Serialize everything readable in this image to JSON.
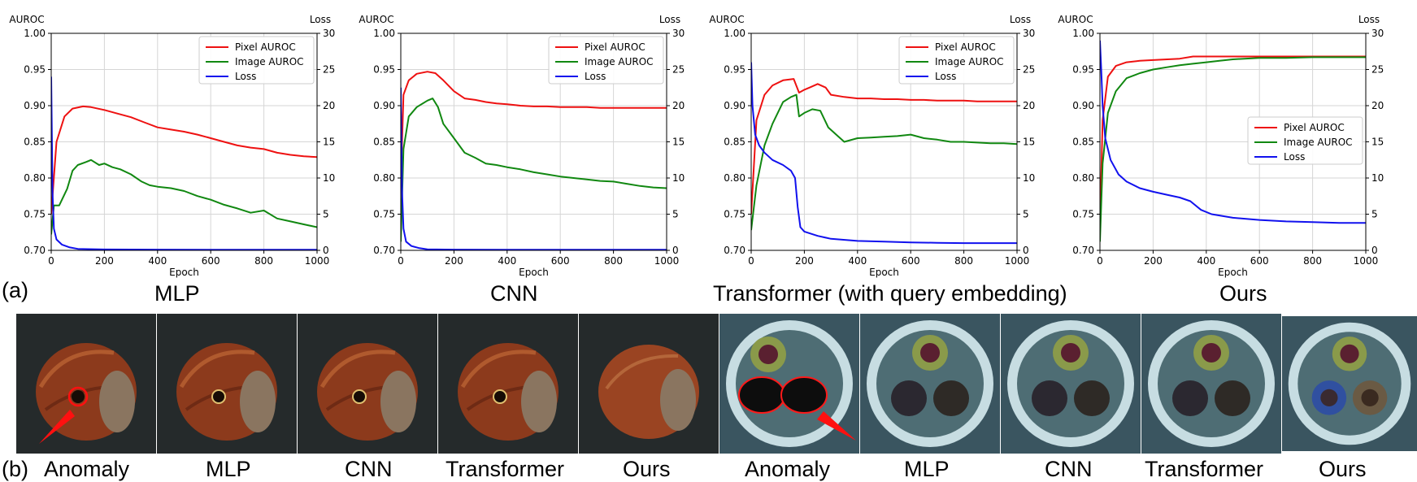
{
  "figure": {
    "part_a_tag": "(a)",
    "part_b_tag": "(b)",
    "chart_captions": [
      "MLP",
      "CNN",
      "Transformer (with query embedding)",
      "Ours"
    ],
    "image_captions": [
      "Anomaly",
      "MLP",
      "CNN",
      "Transformer",
      "Ours",
      "Anomaly",
      "MLP",
      "CNN",
      "Transformer",
      "Ours"
    ]
  },
  "chart_data": [
    {
      "type": "line",
      "title": "",
      "xlabel": "Epoch",
      "ylabel_left": "AUROC",
      "ylabel_right": "Loss",
      "xlim": [
        0,
        1000
      ],
      "ylim_left": [
        0.7,
        1.0
      ],
      "ylim_right": [
        0,
        30
      ],
      "xticks": [
        "0",
        "200",
        "400",
        "600",
        "800",
        "1000"
      ],
      "yticks_left": [
        "0.70",
        "0.75",
        "0.80",
        "0.85",
        "0.90",
        "0.95",
        "1.00"
      ],
      "yticks_right": [
        "0",
        "5",
        "10",
        "15",
        "20",
        "25",
        "30"
      ],
      "grid": true,
      "legend_position": "top-right",
      "series": [
        {
          "name": "Pixel AUROC",
          "axis": "left",
          "color": "#ee1111",
          "x": [
            0,
            20,
            50,
            80,
            120,
            150,
            200,
            250,
            300,
            350,
            400,
            450,
            500,
            550,
            600,
            650,
            700,
            750,
            800,
            850,
            900,
            950,
            1000
          ],
          "y": [
            0.75,
            0.85,
            0.885,
            0.896,
            0.899,
            0.898,
            0.894,
            0.889,
            0.884,
            0.877,
            0.87,
            0.867,
            0.864,
            0.86,
            0.855,
            0.85,
            0.845,
            0.842,
            0.84,
            0.835,
            0.832,
            0.83,
            0.829
          ]
        },
        {
          "name": "Image AUROC",
          "axis": "left",
          "color": "#118811",
          "x": [
            0,
            10,
            30,
            60,
            80,
            100,
            130,
            150,
            180,
            200,
            230,
            260,
            300,
            340,
            370,
            400,
            450,
            500,
            550,
            600,
            650,
            700,
            750,
            800,
            850,
            900,
            950,
            1000
          ],
          "y": [
            0.722,
            0.762,
            0.762,
            0.785,
            0.81,
            0.818,
            0.822,
            0.825,
            0.818,
            0.82,
            0.815,
            0.812,
            0.805,
            0.795,
            0.79,
            0.788,
            0.786,
            0.782,
            0.775,
            0.77,
            0.763,
            0.758,
            0.752,
            0.755,
            0.744,
            0.74,
            0.736,
            0.732
          ]
        },
        {
          "name": "Loss",
          "axis": "right",
          "color": "#1111ee",
          "x": [
            0,
            5,
            10,
            20,
            40,
            70,
            100,
            200,
            400,
            600,
            800,
            1000
          ],
          "y": [
            24.0,
            8.0,
            3.0,
            1.5,
            0.8,
            0.4,
            0.2,
            0.12,
            0.1,
            0.08,
            0.08,
            0.08
          ]
        }
      ]
    },
    {
      "type": "line",
      "title": "",
      "xlabel": "Epoch",
      "ylabel_left": "AUROC",
      "ylabel_right": "Loss",
      "xlim": [
        0,
        1000
      ],
      "ylim_left": [
        0.7,
        1.0
      ],
      "ylim_right": [
        0,
        30
      ],
      "xticks": [
        "0",
        "200",
        "400",
        "600",
        "800",
        "1000"
      ],
      "yticks_left": [
        "0.70",
        "0.75",
        "0.80",
        "0.85",
        "0.90",
        "0.95",
        "1.00"
      ],
      "yticks_right": [
        "0",
        "5",
        "10",
        "15",
        "20",
        "25",
        "30"
      ],
      "grid": true,
      "legend_position": "top-right",
      "series": [
        {
          "name": "Pixel AUROC",
          "axis": "left",
          "color": "#ee1111",
          "x": [
            0,
            10,
            30,
            60,
            100,
            130,
            160,
            200,
            240,
            280,
            320,
            360,
            400,
            450,
            500,
            550,
            600,
            650,
            700,
            750,
            800,
            850,
            900,
            950,
            1000
          ],
          "y": [
            0.79,
            0.915,
            0.935,
            0.944,
            0.947,
            0.945,
            0.935,
            0.92,
            0.91,
            0.908,
            0.905,
            0.903,
            0.902,
            0.9,
            0.899,
            0.899,
            0.898,
            0.898,
            0.898,
            0.897,
            0.897,
            0.897,
            0.897,
            0.897,
            0.897
          ]
        },
        {
          "name": "Image AUROC",
          "axis": "left",
          "color": "#118811",
          "x": [
            0,
            10,
            30,
            60,
            100,
            120,
            140,
            160,
            200,
            240,
            280,
            320,
            360,
            400,
            450,
            500,
            550,
            600,
            650,
            700,
            750,
            800,
            850,
            900,
            950,
            1000
          ],
          "y": [
            0.712,
            0.84,
            0.885,
            0.898,
            0.907,
            0.91,
            0.898,
            0.875,
            0.855,
            0.835,
            0.828,
            0.82,
            0.818,
            0.815,
            0.812,
            0.808,
            0.805,
            0.802,
            0.8,
            0.798,
            0.796,
            0.795,
            0.792,
            0.789,
            0.787,
            0.786
          ]
        },
        {
          "name": "Loss",
          "axis": "right",
          "color": "#1111ee",
          "x": [
            0,
            5,
            10,
            20,
            40,
            70,
            100,
            200,
            400,
            600,
            800,
            1000
          ],
          "y": [
            22.5,
            8.0,
            3.0,
            1.2,
            0.6,
            0.3,
            0.15,
            0.1,
            0.08,
            0.08,
            0.08,
            0.08
          ]
        }
      ]
    },
    {
      "type": "line",
      "title": "",
      "xlabel": "Epoch",
      "ylabel_left": "AUROC",
      "ylabel_right": "Loss",
      "xlim": [
        0,
        1000
      ],
      "ylim_left": [
        0.7,
        1.0
      ],
      "ylim_right": [
        0,
        30
      ],
      "xticks": [
        "0",
        "200",
        "400",
        "600",
        "800",
        "1000"
      ],
      "yticks_left": [
        "0.70",
        "0.75",
        "0.80",
        "0.85",
        "0.90",
        "0.95",
        "1.00"
      ],
      "yticks_right": [
        "0",
        "5",
        "10",
        "15",
        "20",
        "25",
        "30"
      ],
      "grid": true,
      "legend_position": "top-right",
      "series": [
        {
          "name": "Pixel AUROC",
          "axis": "left",
          "color": "#ee1111",
          "x": [
            0,
            20,
            50,
            80,
            120,
            160,
            180,
            200,
            220,
            250,
            280,
            300,
            350,
            400,
            450,
            500,
            550,
            600,
            650,
            700,
            750,
            800,
            850,
            900,
            950,
            1000
          ],
          "y": [
            0.75,
            0.88,
            0.915,
            0.928,
            0.935,
            0.937,
            0.918,
            0.922,
            0.925,
            0.93,
            0.925,
            0.915,
            0.912,
            0.91,
            0.91,
            0.909,
            0.909,
            0.908,
            0.908,
            0.907,
            0.907,
            0.907,
            0.906,
            0.906,
            0.906,
            0.906
          ]
        },
        {
          "name": "Image AUROC",
          "axis": "left",
          "color": "#118811",
          "x": [
            0,
            20,
            50,
            80,
            120,
            150,
            170,
            180,
            200,
            230,
            260,
            290,
            320,
            350,
            400,
            450,
            500,
            550,
            600,
            650,
            700,
            750,
            800,
            850,
            900,
            950,
            1000
          ],
          "y": [
            0.728,
            0.79,
            0.845,
            0.875,
            0.905,
            0.912,
            0.915,
            0.885,
            0.89,
            0.895,
            0.893,
            0.87,
            0.86,
            0.85,
            0.855,
            0.856,
            0.857,
            0.858,
            0.86,
            0.855,
            0.853,
            0.85,
            0.85,
            0.849,
            0.848,
            0.848,
            0.847
          ]
        },
        {
          "name": "Loss",
          "axis": "right",
          "color": "#1111ee",
          "x": [
            0,
            5,
            15,
            30,
            50,
            80,
            120,
            150,
            165,
            175,
            185,
            200,
            250,
            300,
            400,
            500,
            600,
            700,
            800,
            900,
            1000
          ],
          "y": [
            26.0,
            20.0,
            16.0,
            14.5,
            13.5,
            12.5,
            11.8,
            11.0,
            10.0,
            6.0,
            3.2,
            2.6,
            2.0,
            1.6,
            1.3,
            1.2,
            1.1,
            1.05,
            1.0,
            1.0,
            1.0
          ]
        }
      ]
    },
    {
      "type": "line",
      "title": "",
      "xlabel": "Epoch",
      "ylabel_left": "AUROC",
      "ylabel_right": "Loss",
      "xlim": [
        0,
        1000
      ],
      "ylim_left": [
        0.7,
        1.0
      ],
      "ylim_right": [
        0,
        30
      ],
      "xticks": [
        "0",
        "200",
        "400",
        "600",
        "800",
        "1000"
      ],
      "yticks_left": [
        "0.70",
        "0.75",
        "0.80",
        "0.85",
        "0.90",
        "0.95",
        "1.00"
      ],
      "yticks_right": [
        "0",
        "5",
        "10",
        "15",
        "20",
        "25",
        "30"
      ],
      "grid": true,
      "legend_position": "center-right",
      "series": [
        {
          "name": "Pixel AUROC",
          "axis": "left",
          "color": "#ee1111",
          "x": [
            0,
            10,
            30,
            60,
            100,
            150,
            200,
            300,
            350,
            400,
            500,
            600,
            700,
            800,
            900,
            1000
          ],
          "y": [
            0.73,
            0.88,
            0.94,
            0.955,
            0.96,
            0.962,
            0.963,
            0.965,
            0.968,
            0.968,
            0.968,
            0.968,
            0.968,
            0.968,
            0.968,
            0.968
          ]
        },
        {
          "name": "Image AUROC",
          "axis": "left",
          "color": "#118811",
          "x": [
            0,
            10,
            30,
            60,
            100,
            150,
            200,
            250,
            300,
            350,
            400,
            450,
            500,
            600,
            700,
            800,
            900,
            1000
          ],
          "y": [
            0.712,
            0.82,
            0.89,
            0.92,
            0.938,
            0.945,
            0.95,
            0.953,
            0.956,
            0.958,
            0.96,
            0.962,
            0.964,
            0.966,
            0.966,
            0.967,
            0.967,
            0.967
          ]
        },
        {
          "name": "Loss",
          "axis": "right",
          "color": "#1111ee",
          "x": [
            0,
            5,
            10,
            20,
            40,
            70,
            100,
            150,
            200,
            250,
            300,
            340,
            380,
            420,
            500,
            600,
            700,
            800,
            900,
            1000
          ],
          "y": [
            29.0,
            25.0,
            20.0,
            15.5,
            12.5,
            10.5,
            9.5,
            8.6,
            8.1,
            7.7,
            7.3,
            6.8,
            5.6,
            5.0,
            4.5,
            4.2,
            4.0,
            3.9,
            3.8,
            3.8
          ]
        }
      ]
    }
  ]
}
